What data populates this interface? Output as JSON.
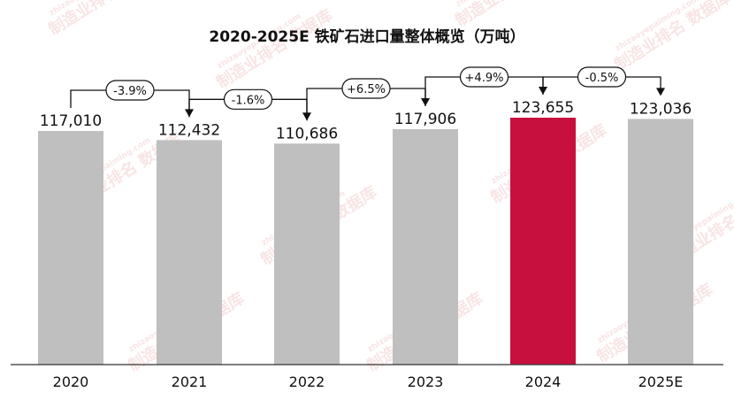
{
  "chart_data": {
    "type": "bar",
    "title": "2020-2025E 铁矿石进口量整体概览（万吨）",
    "categories": [
      "2020",
      "2021",
      "2022",
      "2023",
      "2024",
      "2025E"
    ],
    "values": [
      117010,
      112432,
      110686,
      117906,
      123655,
      123036
    ],
    "value_labels": [
      "117,010",
      "112,432",
      "110,686",
      "117,906",
      "123,655",
      "123,036"
    ],
    "changes": [
      "-3.9%",
      "-1.6%",
      "+6.5%",
      "+4.9%",
      "-0.5%"
    ],
    "colors": {
      "default": "#bfbfbf",
      "highlight": "#c8103e",
      "axis": "#333333",
      "arrow": "#111111"
    },
    "highlight_index": 4,
    "legend": "none",
    "grid": false
  },
  "watermark": {
    "text": "制造业排名 数据库",
    "url_text": "zhizaoyepaiming.com"
  }
}
